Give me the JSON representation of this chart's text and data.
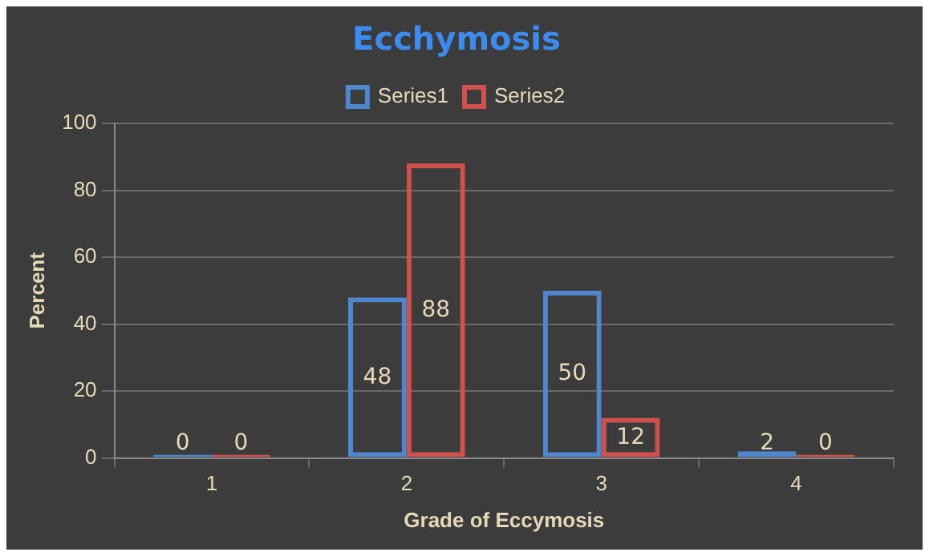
{
  "chart_data": {
    "type": "bar",
    "title": "Ecchymosis",
    "xlabel": "Grade of Eccymosis",
    "ylabel": "Percent",
    "categories": [
      "1",
      "2",
      "3",
      "4"
    ],
    "series": [
      {
        "name": "Series1",
        "color": "#4f86d0",
        "values": [
          0,
          48,
          50,
          2
        ]
      },
      {
        "name": "Series2",
        "color": "#d0504d",
        "values": [
          0,
          88,
          12,
          0
        ]
      }
    ],
    "ylim": [
      0,
      100
    ],
    "yticks": [
      0,
      20,
      40,
      60,
      80,
      100
    ],
    "grid": "y",
    "legend": "top",
    "data_labels": true
  }
}
